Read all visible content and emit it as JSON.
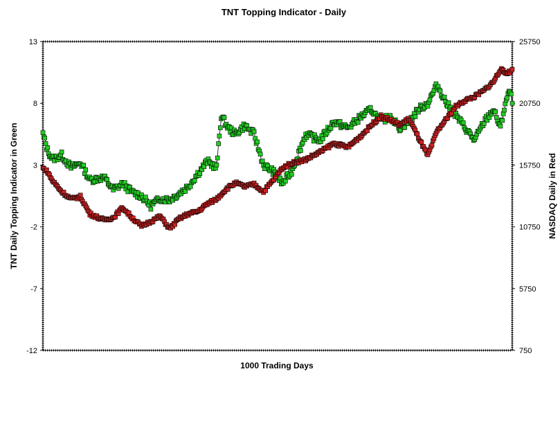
{
  "chart_data": {
    "type": "line",
    "title": "TNT Topping Indicator - Daily",
    "xlabel": "1000 Trading Days",
    "ylabel_left": "TNT Daily Topping Indicator in Green",
    "ylabel_right": "NASDAQ Daily in Red",
    "y_left_ticks": [
      "13",
      "8",
      "3",
      "-2",
      "-7",
      "-12"
    ],
    "y_right_ticks": [
      "25750",
      "20750",
      "15750",
      "10750",
      "5750",
      "750"
    ],
    "y_left_range": [
      -12,
      13
    ],
    "y_right_range": [
      750,
      25750
    ],
    "x_range": [
      0,
      1000
    ],
    "grid": false,
    "marker": "square",
    "series": [
      {
        "name": "TNT Daily Topping Indicator",
        "axis": "left",
        "color": "#22cc22",
        "x": [
          0,
          10,
          20,
          40,
          60,
          80,
          100,
          130,
          150,
          170,
          190,
          210,
          230,
          250,
          270,
          290,
          310,
          330,
          350,
          370,
          380,
          395,
          410,
          430,
          450,
          470,
          490,
          510,
          530,
          560,
          590,
          620,
          650,
          680,
          700,
          720,
          740,
          760,
          780,
          800,
          820,
          840,
          860,
          880,
          900,
          920,
          940,
          960,
          975,
          985,
          995,
          1000
        ],
        "values": [
          5.5,
          4.2,
          3.5,
          3.8,
          2.8,
          3.2,
          1.8,
          2.0,
          1.0,
          1.5,
          0.8,
          0.5,
          -0.3,
          0.3,
          0.2,
          0.7,
          1.3,
          2.3,
          3.3,
          2.8,
          7.0,
          6.0,
          5.5,
          6.2,
          5.5,
          3.0,
          2.5,
          1.5,
          2.5,
          5.5,
          5.0,
          6.5,
          6.0,
          7.0,
          7.5,
          6.5,
          7.0,
          6.0,
          6.5,
          7.5,
          8.0,
          9.5,
          8.0,
          7.0,
          6.0,
          5.0,
          6.5,
          7.5,
          6.0,
          8.0,
          9.0,
          8.0
        ]
      },
      {
        "name": "NASDAQ Daily",
        "axis": "right",
        "color": "#cc2222",
        "x": [
          0,
          10,
          20,
          40,
          60,
          80,
          100,
          130,
          150,
          170,
          190,
          210,
          230,
          250,
          270,
          290,
          310,
          330,
          350,
          370,
          390,
          410,
          430,
          450,
          470,
          490,
          510,
          530,
          560,
          590,
          620,
          650,
          680,
          700,
          720,
          740,
          760,
          780,
          800,
          820,
          840,
          860,
          880,
          900,
          920,
          940,
          960,
          975,
          985,
          995,
          1000
        ],
        "values": [
          15500,
          15200,
          14500,
          13600,
          13000,
          13200,
          11800,
          11300,
          11500,
          12300,
          11500,
          10800,
          11200,
          11600,
          10600,
          11400,
          11800,
          12000,
          12600,
          13000,
          13800,
          14300,
          14000,
          14200,
          13600,
          14500,
          15500,
          15900,
          16200,
          16800,
          17500,
          17200,
          18200,
          19000,
          19700,
          19400,
          19000,
          19500,
          18000,
          16500,
          18500,
          19500,
          20500,
          21000,
          21300,
          21800,
          22500,
          23500,
          23200,
          23300,
          23500
        ]
      }
    ]
  }
}
